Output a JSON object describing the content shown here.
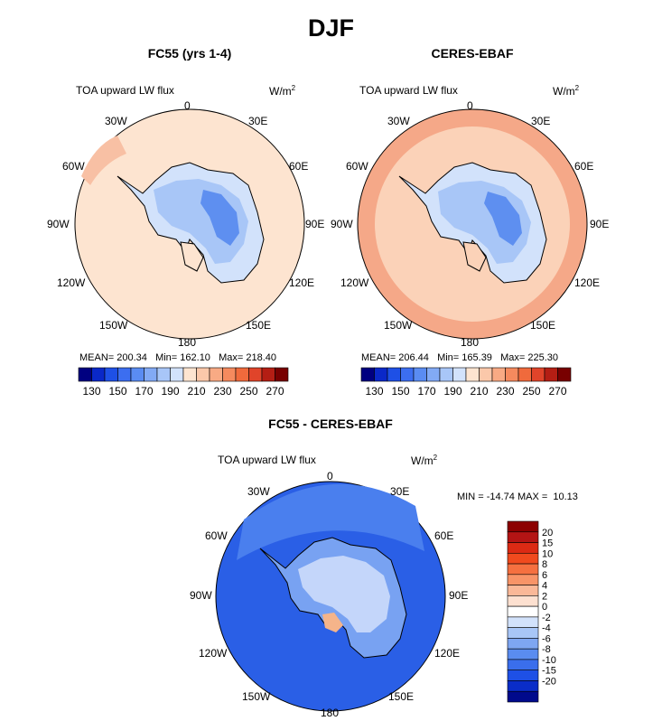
{
  "figure_title": "DJF",
  "panels": [
    {
      "title": "FC55 (yrs 1-4)",
      "variable": "TOA upward LW flux",
      "units": "W/m",
      "units_exp": "2",
      "stats": "MEAN= 200.34   Min= 162.10   Max= 218.40",
      "colors": {
        "ocean": "#fde4d0",
        "ring": "#f8c0a4",
        "cont_light": "#d2e2fb",
        "cont_mid": "#a8c6f7",
        "cont_dark": "#5e8ff0"
      }
    },
    {
      "title": "CERES-EBAF",
      "variable": "TOA upward LW flux",
      "units": "W/m",
      "units_exp": "2",
      "stats": "MEAN= 206.44   Min= 165.39   Max= 225.30",
      "colors": {
        "ocean": "#f5a888",
        "ring": "#fbd2b8",
        "cont_light": "#d2e2fb",
        "cont_mid": "#a8c6f7",
        "cont_dark": "#5e8ff0"
      }
    }
  ],
  "diff_panel": {
    "title": "FC55 - CERES-EBAF",
    "variable": "TOA upward LW flux",
    "units": "W/m",
    "units_exp": "2",
    "stats": "MIN = -14.74 MAX =  10.13",
    "colors": {
      "outer": "#2a5fe6",
      "mid": "#4a7fee",
      "inner": "#78a2f2",
      "pale": "#c4d6fa",
      "warm": "#f5b48a"
    }
  },
  "map_labels": {
    "top": "0",
    "bottom": "180",
    "left_upper": "30W",
    "right_upper": "30E",
    "left_60": "60W",
    "right_60": "60E",
    "left_90": "90W",
    "right_90": "90E",
    "left_120": "120W",
    "right_120": "120E",
    "left_150": "150W",
    "right_150": "150E"
  },
  "colorbar_h": {
    "colors": [
      "#000080",
      "#0a28c8",
      "#1e50e6",
      "#3c6ef0",
      "#5a8cf2",
      "#82aaf5",
      "#a8c6f8",
      "#d2e2fb",
      "#fde4d0",
      "#fbc8aa",
      "#f8aa84",
      "#f58a5e",
      "#f06a3c",
      "#e0442a",
      "#b41e14",
      "#780000"
    ],
    "ticks": [
      "130",
      "150",
      "170",
      "190",
      "210",
      "230",
      "250",
      "270"
    ]
  },
  "colorbar_v": {
    "colors": [
      "#8c0000",
      "#b41414",
      "#dc2a14",
      "#f04a1e",
      "#f57040",
      "#f89468",
      "#fab898",
      "#fde0d0",
      "#ffffff",
      "#d2e2fb",
      "#a8c6f7",
      "#7ea6f2",
      "#5a8cf0",
      "#3a6eec",
      "#1e50e6",
      "#0a2dc8",
      "#000a8c"
    ],
    "ticks": [
      "20",
      "15",
      "10",
      "8",
      "6",
      "4",
      "2",
      "0",
      "-2",
      "-4",
      "-6",
      "-8",
      "-10",
      "-15",
      "-20"
    ]
  }
}
